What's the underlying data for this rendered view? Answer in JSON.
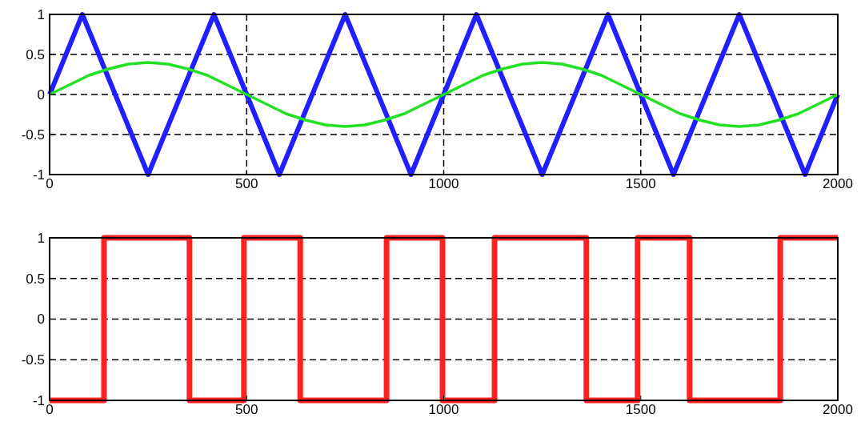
{
  "chart_data": [
    {
      "type": "line",
      "xlim": [
        0,
        2000
      ],
      "ylim": [
        -1,
        1
      ],
      "xticks": [
        0,
        500,
        1000,
        1500,
        2000
      ],
      "yticks": [
        -1,
        -0.5,
        0,
        0.5,
        1
      ],
      "grid": true,
      "line_style": "solid",
      "series": [
        {
          "color": "#1f1fff",
          "x": [
            0,
            83,
            250,
            417,
            583,
            750,
            917,
            1083,
            1250,
            1417,
            1583,
            1750,
            1917,
            2000
          ],
          "values": [
            0,
            1,
            -1,
            1,
            -1,
            1,
            -1,
            1,
            -1,
            1,
            -1,
            1,
            -1,
            0
          ]
        },
        {
          "color": "#22e022",
          "x": [
            0,
            50,
            100,
            150,
            200,
            250,
            300,
            350,
            400,
            450,
            500,
            550,
            600,
            650,
            700,
            750,
            800,
            850,
            900,
            950,
            1000,
            1050,
            1100,
            1150,
            1200,
            1250,
            1300,
            1350,
            1400,
            1450,
            1500,
            1550,
            1600,
            1650,
            1700,
            1750,
            1800,
            1850,
            1900,
            1950,
            2000
          ],
          "values": [
            0,
            0.12,
            0.24,
            0.32,
            0.38,
            0.4,
            0.38,
            0.32,
            0.24,
            0.12,
            0,
            -0.12,
            -0.24,
            -0.32,
            -0.38,
            -0.4,
            -0.38,
            -0.32,
            -0.24,
            -0.12,
            0,
            0.12,
            0.24,
            0.32,
            0.38,
            0.4,
            0.38,
            0.32,
            0.24,
            0.12,
            0,
            -0.12,
            -0.24,
            -0.32,
            -0.38,
            -0.4,
            -0.38,
            -0.32,
            -0.24,
            -0.12,
            0
          ]
        }
      ]
    },
    {
      "type": "step",
      "xlim": [
        0,
        2000
      ],
      "ylim": [
        -1,
        1
      ],
      "xticks": [
        0,
        500,
        1000,
        1500,
        2000
      ],
      "yticks": [
        -1,
        -0.5,
        0,
        0.5,
        1
      ],
      "grid": "y",
      "line_style": "solid",
      "series": [
        {
          "color": "#ff2020",
          "x": [
            0,
            138,
            355,
            493,
            636,
            855,
            997,
            1129,
            1362,
            1492,
            1624,
            1854,
            2000
          ],
          "values": [
            -1,
            1,
            -1,
            1,
            -1,
            1,
            -1,
            1,
            -1,
            1,
            -1,
            1,
            1
          ]
        }
      ]
    }
  ]
}
